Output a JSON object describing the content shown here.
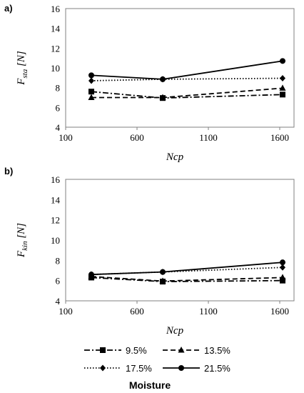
{
  "chart_data": [
    {
      "type": "line",
      "panel_label": "a)",
      "ylabel_main": "F",
      "ylabel_sub": "sta",
      "ylabel_unit": " [N]",
      "xlabel": "Ncp",
      "xlim": [
        100,
        1700
      ],
      "ylim": [
        4,
        16
      ],
      "xticks": [
        100,
        600,
        1100,
        1600
      ],
      "yticks": [
        4,
        6,
        8,
        10,
        12,
        14,
        16
      ],
      "series": [
        {
          "name": "9.5%",
          "x": [
            280,
            780,
            1620
          ],
          "y": [
            7.6,
            6.95,
            7.3
          ]
        },
        {
          "name": "13.5%",
          "x": [
            280,
            780,
            1620
          ],
          "y": [
            7.0,
            7.0,
            7.95
          ]
        },
        {
          "name": "17.5%",
          "x": [
            280,
            780,
            1620
          ],
          "y": [
            8.7,
            8.85,
            8.95
          ]
        },
        {
          "name": "21.5%",
          "x": [
            280,
            780,
            1620
          ],
          "y": [
            9.25,
            8.85,
            10.7
          ]
        }
      ]
    },
    {
      "type": "line",
      "panel_label": "b)",
      "ylabel_main": "F",
      "ylabel_sub": "kin",
      "ylabel_unit": " [N]",
      "xlabel": "Ncp",
      "xlim": [
        100,
        1700
      ],
      "ylim": [
        4,
        16
      ],
      "xticks": [
        100,
        600,
        1100,
        1600
      ],
      "yticks": [
        4,
        6,
        8,
        10,
        12,
        14,
        16
      ],
      "series": [
        {
          "name": "9.5%",
          "x": [
            280,
            780,
            1620
          ],
          "y": [
            6.3,
            5.9,
            6.0
          ]
        },
        {
          "name": "13.5%",
          "x": [
            280,
            780,
            1620
          ],
          "y": [
            6.4,
            5.95,
            6.3
          ]
        },
        {
          "name": "17.5%",
          "x": [
            280,
            780,
            1620
          ],
          "y": [
            6.6,
            6.85,
            7.3
          ]
        },
        {
          "name": "21.5%",
          "x": [
            280,
            780,
            1620
          ],
          "y": [
            6.6,
            6.85,
            7.8
          ]
        }
      ]
    }
  ],
  "legend": {
    "title": "Moisture",
    "entries": [
      {
        "label": "9.5%",
        "marker": "square",
        "dash": "8,3,2,3"
      },
      {
        "label": "13.5%",
        "marker": "triangle",
        "dash": "7,4"
      },
      {
        "label": "17.5%",
        "marker": "diamond",
        "dash": "1.5,2.5"
      },
      {
        "label": "21.5%",
        "marker": "circle",
        "dash": ""
      }
    ]
  },
  "colors": {
    "line": "#000000",
    "axis": "#808080",
    "text": "#000000"
  }
}
